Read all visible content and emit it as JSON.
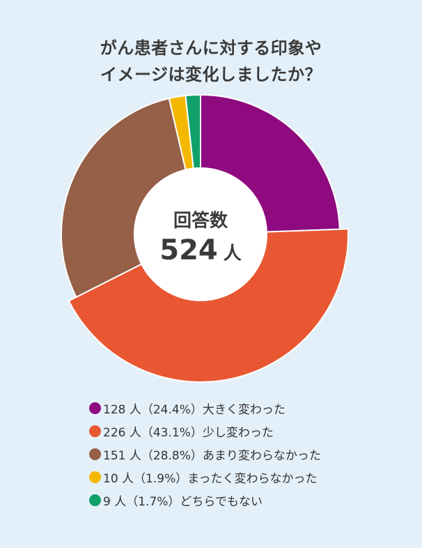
{
  "title_lines": [
    "がん患者さんに対する印象や",
    "イメージは変化しましたか？"
  ],
  "center": {
    "title": "回答数",
    "value": "524",
    "unit": "人"
  },
  "chart_data": {
    "type": "pie",
    "title": "がん患者さんに対する印象やイメージは変化しましたか？",
    "total": 524,
    "slices": [
      {
        "label": "大きく変わった",
        "count": 128,
        "percent": 24.4,
        "color": "#8e0a7e",
        "legend_text": "128 人（24.4%）大きく変わった"
      },
      {
        "label": "少し変わった",
        "count": 226,
        "percent": 43.1,
        "color": "#e85732",
        "legend_text": "226 人（43.1%）少し変わった"
      },
      {
        "label": "あまり変わらなかった",
        "count": 151,
        "percent": 28.8,
        "color": "#955f48",
        "legend_text": "151 人（28.8%）あまり変わらなかった"
      },
      {
        "label": "まったく変わらなかった",
        "count": 10,
        "percent": 1.9,
        "color": "#f5b800",
        "legend_text": "10 人（1.9%）まったく変わらなかった"
      },
      {
        "label": "どちらでもない",
        "count": 9,
        "percent": 1.7,
        "color": "#10a06a",
        "legend_text": "9 人（1.7%）どちらでもない"
      }
    ]
  }
}
